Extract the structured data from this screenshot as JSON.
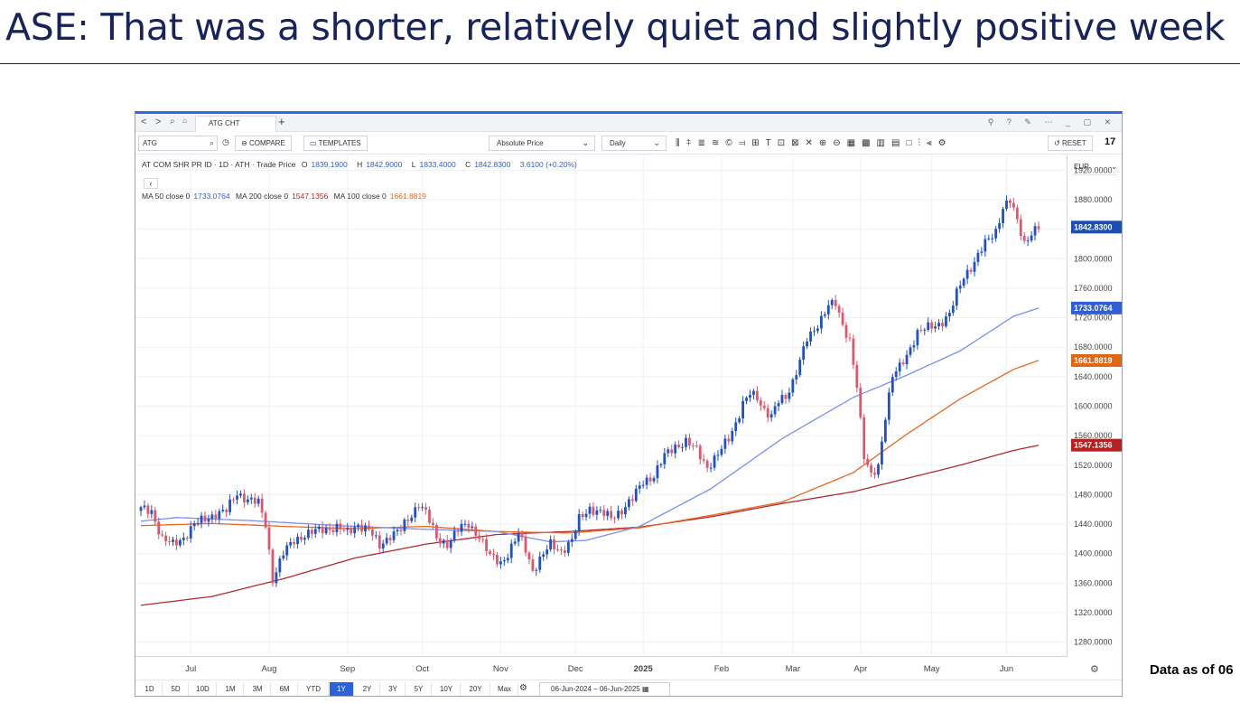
{
  "slide": {
    "title": "ASE: That was a shorter, relatively quiet and slightly positive week",
    "footnote": "Data as of 06"
  },
  "tabbar": {
    "nav_back": "<",
    "nav_forward": ">",
    "tab_label": "ATG CHT",
    "add_tab": "+"
  },
  "toolbar": {
    "symbol_value": "ATG",
    "compare_label": "COMPARE",
    "templates_label": "TEMPLATES",
    "price_type": "Absolute Price",
    "interval": "Daily",
    "reset_label": "RESET",
    "logo": "17"
  },
  "legend": {
    "instrument": "AT COM SHR PR ID · 1D · ATH · Trade Price",
    "o_label": "O",
    "open": "1839.1900",
    "h_label": "H",
    "high": "1842.9000",
    "l_label": "L",
    "low": "1833.4000",
    "c_label": "C",
    "close": "1842.8300",
    "change": "3.6100 (+0.20%)",
    "ma": [
      {
        "label": "MA 50 close 0",
        "value": "1733.0764",
        "color": "#3a5fcd"
      },
      {
        "label": "MA 200 close 0",
        "value": "1547.1356",
        "color": "#b22a2a"
      },
      {
        "label": "MA 100 close 0",
        "value": "1661.8819",
        "color": "#e8691c"
      }
    ]
  },
  "axis": {
    "currency": "EUR"
  },
  "chart_data": {
    "type": "candlestick",
    "instrument": "AT COM SHR PR ID",
    "interval": "1D",
    "x_labels": [
      {
        "label": "Jul",
        "idx": 14
      },
      {
        "label": "Aug",
        "idx": 36
      },
      {
        "label": "Sep",
        "idx": 58
      },
      {
        "label": "Oct",
        "idx": 79
      },
      {
        "label": "Nov",
        "idx": 101
      },
      {
        "label": "Dec",
        "idx": 122
      },
      {
        "label": "2025",
        "idx": 141,
        "bold": true
      },
      {
        "label": "Feb",
        "idx": 163
      },
      {
        "label": "Mar",
        "idx": 183
      },
      {
        "label": "Apr",
        "idx": 202
      },
      {
        "label": "May",
        "idx": 222
      },
      {
        "label": "Jun",
        "idx": 243
      }
    ],
    "ylim": [
      1260,
      1940
    ],
    "y_ticks": [
      "1280.0000",
      "1320.0000",
      "1360.0000",
      "1400.0000",
      "1440.0000",
      "1480.0000",
      "1520.0000",
      "1560.0000",
      "1600.0000",
      "1640.0000",
      "1680.0000",
      "1720.0000",
      "1760.0000",
      "1800.0000",
      "1840.0000",
      "1880.0000",
      "1920.0000"
    ],
    "close_keypoints": [
      [
        0,
        1460
      ],
      [
        3,
        1458
      ],
      [
        6,
        1420
      ],
      [
        9,
        1412
      ],
      [
        12,
        1422
      ],
      [
        15,
        1440
      ],
      [
        18,
        1446
      ],
      [
        21,
        1455
      ],
      [
        24,
        1458
      ],
      [
        27,
        1482
      ],
      [
        30,
        1474
      ],
      [
        33,
        1468
      ],
      [
        35,
        1440
      ],
      [
        37,
        1366
      ],
      [
        40,
        1400
      ],
      [
        43,
        1418
      ],
      [
        46,
        1426
      ],
      [
        49,
        1430
      ],
      [
        52,
        1434
      ],
      [
        55,
        1436
      ],
      [
        58,
        1428
      ],
      [
        61,
        1440
      ],
      [
        64,
        1432
      ],
      [
        67,
        1410
      ],
      [
        70,
        1426
      ],
      [
        73,
        1432
      ],
      [
        76,
        1452
      ],
      [
        78,
        1470
      ],
      [
        80,
        1456
      ],
      [
        83,
        1420
      ],
      [
        86,
        1414
      ],
      [
        89,
        1432
      ],
      [
        92,
        1440
      ],
      [
        95,
        1424
      ],
      [
        98,
        1396
      ],
      [
        101,
        1388
      ],
      [
        103,
        1400
      ],
      [
        106,
        1426
      ],
      [
        108,
        1406
      ],
      [
        110,
        1378
      ],
      [
        112,
        1392
      ],
      [
        115,
        1412
      ],
      [
        118,
        1404
      ],
      [
        121,
        1418
      ],
      [
        123,
        1446
      ],
      [
        126,
        1462
      ],
      [
        129,
        1456
      ],
      [
        132,
        1448
      ],
      [
        135,
        1460
      ],
      [
        138,
        1474
      ],
      [
        141,
        1498
      ],
      [
        144,
        1506
      ],
      [
        147,
        1532
      ],
      [
        150,
        1546
      ],
      [
        153,
        1552
      ],
      [
        156,
        1540
      ],
      [
        159,
        1518
      ],
      [
        162,
        1534
      ],
      [
        165,
        1556
      ],
      [
        167,
        1578
      ],
      [
        169,
        1604
      ],
      [
        171,
        1616
      ],
      [
        173,
        1610
      ],
      [
        175,
        1596
      ],
      [
        177,
        1588
      ],
      [
        179,
        1606
      ],
      [
        181,
        1610
      ],
      [
        183,
        1634
      ],
      [
        185,
        1664
      ],
      [
        187,
        1690
      ],
      [
        189,
        1700
      ],
      [
        191,
        1720
      ],
      [
        193,
        1740
      ],
      [
        195,
        1738
      ],
      [
        197,
        1706
      ],
      [
        199,
        1690
      ],
      [
        201,
        1630
      ],
      [
        203,
        1530
      ],
      [
        205,
        1504
      ],
      [
        207,
        1520
      ],
      [
        209,
        1588
      ],
      [
        211,
        1640
      ],
      [
        213,
        1652
      ],
      [
        215,
        1670
      ],
      [
        218,
        1700
      ],
      [
        221,
        1706
      ],
      [
        224,
        1712
      ],
      [
        227,
        1724
      ],
      [
        229,
        1752
      ],
      [
        231,
        1776
      ],
      [
        234,
        1796
      ],
      [
        237,
        1820
      ],
      [
        240,
        1838
      ],
      [
        242,
        1870
      ],
      [
        244,
        1878
      ],
      [
        246,
        1850
      ],
      [
        248,
        1822
      ],
      [
        250,
        1836
      ],
      [
        252,
        1842
      ]
    ],
    "ma50_keypoints": [
      [
        0,
        1444
      ],
      [
        10,
        1449
      ],
      [
        30,
        1445
      ],
      [
        60,
        1437
      ],
      [
        80,
        1433
      ],
      [
        100,
        1430
      ],
      [
        115,
        1416
      ],
      [
        125,
        1418
      ],
      [
        140,
        1437
      ],
      [
        160,
        1488
      ],
      [
        180,
        1556
      ],
      [
        200,
        1612
      ],
      [
        215,
        1642
      ],
      [
        230,
        1675
      ],
      [
        245,
        1722
      ],
      [
        252,
        1733
      ]
    ],
    "ma100_keypoints": [
      [
        0,
        1438
      ],
      [
        20,
        1441
      ],
      [
        40,
        1437
      ],
      [
        60,
        1434
      ],
      [
        80,
        1437
      ],
      [
        100,
        1430
      ],
      [
        120,
        1428
      ],
      [
        140,
        1435
      ],
      [
        160,
        1452
      ],
      [
        180,
        1470
      ],
      [
        200,
        1510
      ],
      [
        215,
        1562
      ],
      [
        230,
        1610
      ],
      [
        245,
        1650
      ],
      [
        252,
        1662
      ]
    ],
    "ma200_keypoints": [
      [
        0,
        1330
      ],
      [
        20,
        1342
      ],
      [
        40,
        1366
      ],
      [
        60,
        1394
      ],
      [
        80,
        1413
      ],
      [
        100,
        1426
      ],
      [
        120,
        1430
      ],
      [
        140,
        1436
      ],
      [
        160,
        1450
      ],
      [
        180,
        1468
      ],
      [
        200,
        1484
      ],
      [
        215,
        1502
      ],
      [
        230,
        1520
      ],
      [
        245,
        1540
      ],
      [
        252,
        1547
      ]
    ],
    "price_markers": [
      {
        "label": "1842.8300",
        "value": 1842.83,
        "color": "#1a4fb8"
      },
      {
        "label": "1733.0764",
        "value": 1733.0764,
        "color": "#2e5fd6"
      },
      {
        "label": "1661.8819",
        "value": 1661.8819,
        "color": "#e06612"
      },
      {
        "label": "1547.1356",
        "value": 1547.1356,
        "color": "#b52020"
      }
    ]
  },
  "range_bar": {
    "buttons": [
      "1D",
      "5D",
      "10D",
      "1M",
      "3M",
      "6M",
      "YTD",
      "1Y",
      "2Y",
      "3Y",
      "5Y",
      "10Y",
      "20Y",
      "Max"
    ],
    "active": "1Y",
    "date_range": "06-Jun-2024  –  06-Jun-2025"
  }
}
